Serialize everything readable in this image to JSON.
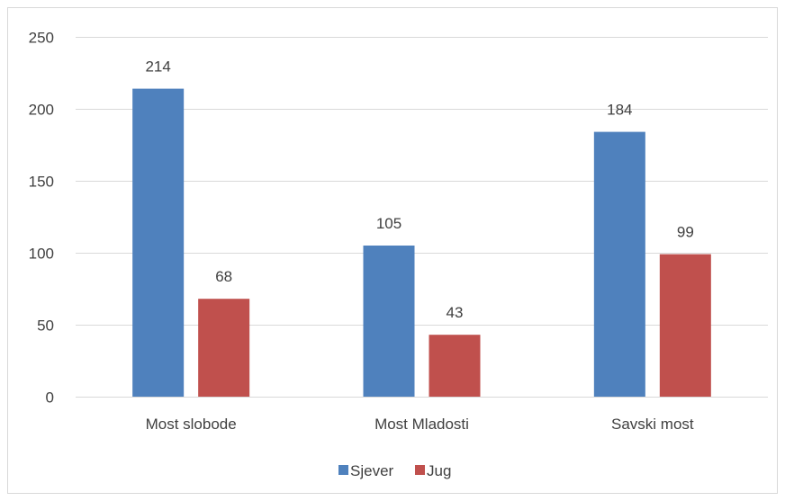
{
  "chart_data": {
    "type": "bar",
    "title": "",
    "xlabel": "",
    "ylabel": "",
    "categories": [
      "Most slobode",
      "Most Mladosti",
      "Savski most"
    ],
    "series": [
      {
        "name": "Sjever",
        "values": [
          214,
          105,
          184
        ],
        "color": "#4F81BD"
      },
      {
        "name": "Jug",
        "values": [
          68,
          43,
          99
        ],
        "color": "#C0504D"
      }
    ],
    "ylim": [
      0,
      250
    ],
    "yticks": [
      0,
      50,
      100,
      150,
      200,
      250
    ],
    "grid": true,
    "legend": "bottom",
    "gridline_color": "#D9D9D9",
    "frame_color": "#D9D9D9"
  }
}
